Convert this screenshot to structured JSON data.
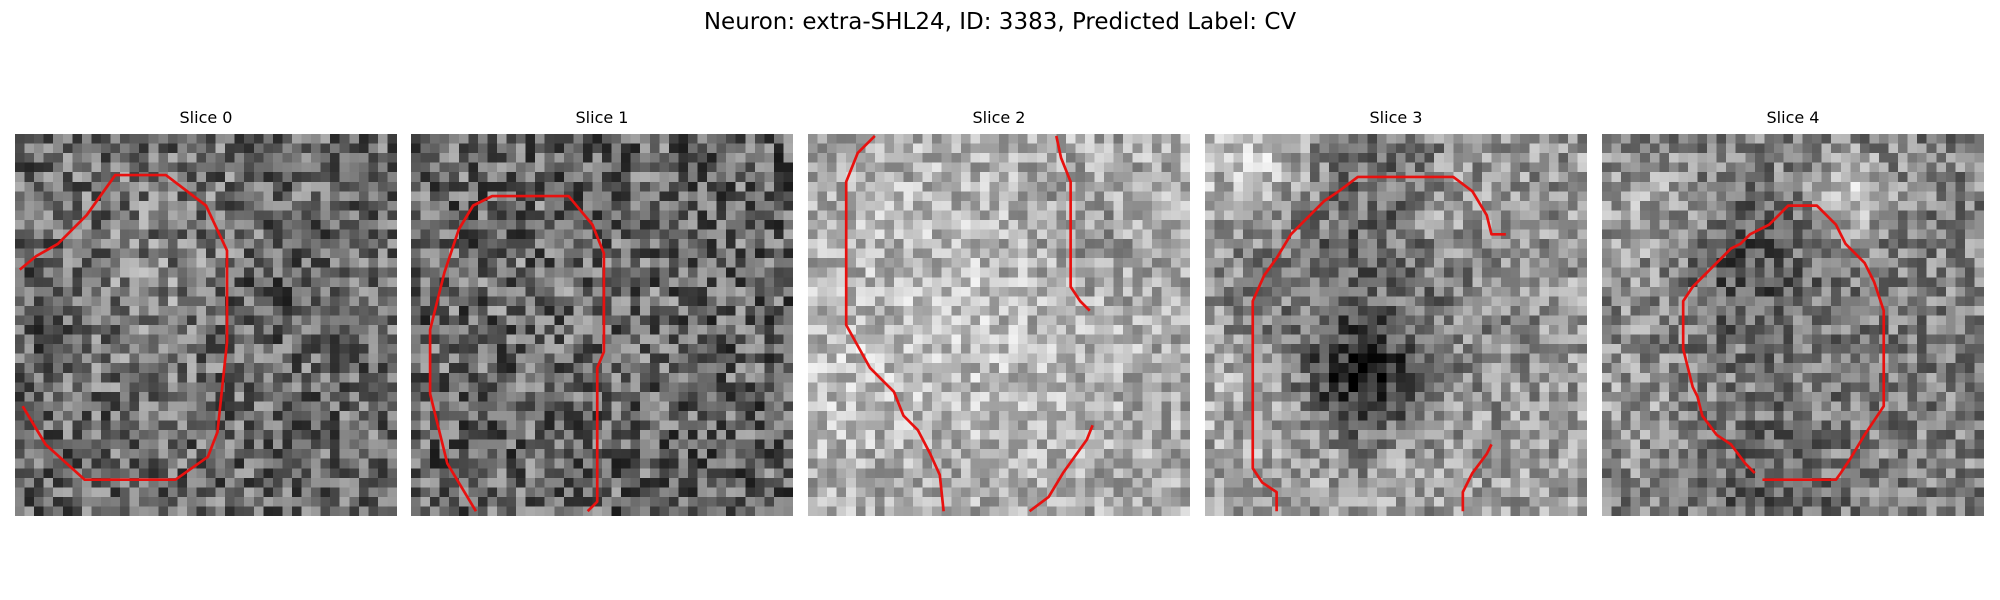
{
  "figure": {
    "title": "Neuron: extra-SHL24, ID: 3383, Predicted Label: CV",
    "contour_color": "#e8110f",
    "panels": [
      {
        "title": "Slice 0",
        "base_gray": 105,
        "contrast": 70,
        "seed": 11,
        "blobs": [
          [
            14,
            14,
            8,
            25
          ],
          [
            2,
            16,
            5,
            -15
          ],
          [
            26,
            16,
            4,
            -20
          ]
        ],
        "contours": [
          [
            [
              0.5,
              14.2
            ],
            [
              2.2,
              12.8
            ],
            [
              4.5,
              11.5
            ],
            [
              7.5,
              8.5
            ],
            [
              10.5,
              4.3
            ],
            [
              15.8,
              4.3
            ],
            [
              20,
              7.5
            ],
            [
              22.2,
              12.2
            ],
            [
              22.2,
              21.8
            ],
            [
              21.2,
              31.2
            ],
            [
              20.2,
              33.8
            ],
            [
              16.8,
              36.2
            ],
            [
              7.3,
              36.2
            ],
            [
              3.2,
              32.5
            ],
            [
              0.8,
              28.5
            ]
          ]
        ]
      },
      {
        "title": "Slice 1",
        "base_gray": 100,
        "contrast": 75,
        "seed": 23,
        "blobs": [
          [
            17,
            17,
            10,
            10
          ]
        ],
        "contours": [
          [
            [
              6.8,
              39.5
            ],
            [
              3.8,
              34.5
            ],
            [
              2,
              27.2
            ],
            [
              2,
              20.5
            ],
            [
              3.5,
              14.5
            ],
            [
              5,
              10
            ],
            [
              6.5,
              7.5
            ],
            [
              8.5,
              6.5
            ],
            [
              16.5,
              6.5
            ],
            [
              19,
              9.5
            ],
            [
              20.2,
              12.5
            ],
            [
              20.2,
              22.8
            ],
            [
              19.5,
              24.5
            ],
            [
              19.5,
              38.5
            ],
            [
              18.5,
              39.5
            ]
          ]
        ]
      },
      {
        "title": "Slice 2",
        "base_gray": 170,
        "contrast": 55,
        "seed": 37,
        "blobs": [
          [
            16,
            18,
            11,
            20
          ],
          [
            2,
            26,
            5,
            15
          ],
          [
            28,
            10,
            5,
            -20
          ]
        ],
        "contours": [
          [
            [
              7,
              0.2
            ],
            [
              5.2,
              2
            ],
            [
              4,
              5
            ],
            [
              4,
              20
            ],
            [
              6.5,
              24.5
            ],
            [
              9,
              27
            ],
            [
              10,
              29.5
            ],
            [
              11.5,
              31
            ],
            [
              12.8,
              33.5
            ],
            [
              13.8,
              35.7
            ],
            [
              14.2,
              39.5
            ]
          ],
          [
            [
              26,
              0.2
            ],
            [
              26.5,
              2.5
            ],
            [
              27.5,
              5
            ],
            [
              27.5,
              16
            ],
            [
              28.5,
              17.5
            ],
            [
              29.5,
              18.5
            ]
          ],
          [
            [
              23.2,
              39.5
            ],
            [
              25.2,
              38
            ],
            [
              26.7,
              35.5
            ],
            [
              29.2,
              32
            ],
            [
              29.8,
              30.5
            ]
          ]
        ]
      },
      {
        "title": "Slice 3",
        "base_gray": 160,
        "contrast": 60,
        "seed": 51,
        "blobs": [
          [
            16,
            9,
            12,
            -60
          ],
          [
            16,
            25,
            4,
            -110
          ],
          [
            5,
            3,
            5,
            70
          ],
          [
            26,
            7,
            4,
            40
          ],
          [
            3,
            28,
            5,
            20
          ]
        ],
        "contours": [
          [
            [
              7.5,
              39.5
            ],
            [
              7.5,
              37.5
            ],
            [
              6,
              36.5
            ],
            [
              5,
              35
            ],
            [
              5,
              17.5
            ],
            [
              6.2,
              14.8
            ],
            [
              7.5,
              13
            ],
            [
              9,
              10.5
            ],
            [
              10,
              9.5
            ],
            [
              12.5,
              7
            ],
            [
              14,
              6
            ],
            [
              16,
              4.5
            ],
            [
              26,
              4.5
            ],
            [
              28,
              6
            ],
            [
              29.5,
              8.5
            ],
            [
              30,
              10.5
            ],
            [
              31.5,
              10.5
            ]
          ],
          [
            [
              27,
              39.5
            ],
            [
              27,
              37.5
            ],
            [
              28,
              35.5
            ],
            [
              29.5,
              33.5
            ],
            [
              30,
              32.5
            ]
          ]
        ]
      },
      {
        "title": "Slice 4",
        "base_gray": 130,
        "contrast": 60,
        "seed": 67,
        "blobs": [
          [
            17,
            22,
            9,
            -10
          ],
          [
            14,
            13,
            5,
            -45
          ],
          [
            5,
            9,
            5,
            40
          ],
          [
            25,
            6,
            3,
            70
          ],
          [
            16,
            38,
            5,
            -40
          ],
          [
            3,
            27,
            5,
            30
          ]
        ],
        "contours": [
          [
            [
              16,
              35.5
            ],
            [
              15,
              34.5
            ],
            [
              13.5,
              32.5
            ],
            [
              12,
              31.5
            ],
            [
              10.5,
              29.5
            ],
            [
              10,
              27.5
            ],
            [
              9.5,
              26.5
            ],
            [
              9,
              24.5
            ],
            [
              8.5,
              22.5
            ],
            [
              8.5,
              17.5
            ],
            [
              9.5,
              16
            ],
            [
              10.5,
              15
            ],
            [
              11.5,
              14
            ],
            [
              12.5,
              13
            ],
            [
              13.5,
              12
            ],
            [
              14.5,
              11.5
            ],
            [
              15.5,
              10.5
            ],
            [
              17.5,
              9.5
            ],
            [
              18.5,
              8.5
            ],
            [
              19.5,
              7.5
            ],
            [
              22.5,
              7.5
            ],
            [
              24.5,
              9.5
            ],
            [
              25.5,
              11.5
            ],
            [
              27.5,
              13.5
            ],
            [
              28.5,
              15.5
            ],
            [
              29.5,
              18.5
            ],
            [
              29.5,
              28.5
            ],
            [
              28.5,
              30
            ],
            [
              27.5,
              31.5
            ],
            [
              26,
              34
            ],
            [
              25,
              35.5
            ],
            [
              24.5,
              36.2
            ],
            [
              16.8,
              36.2
            ]
          ]
        ]
      }
    ]
  }
}
